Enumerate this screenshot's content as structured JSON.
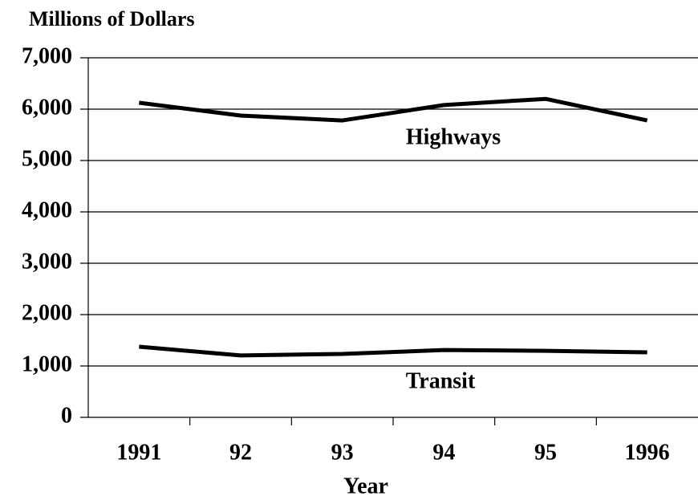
{
  "chart_data": {
    "type": "line",
    "y_label": "Millions of Dollars",
    "x_label": "Year",
    "categories": [
      "1991",
      "92",
      "93",
      "94",
      "95",
      "1996"
    ],
    "series": [
      {
        "name": "Highways",
        "color": "#000000",
        "values": [
          6125,
          5875,
          5780,
          6080,
          6200,
          5780
        ]
      },
      {
        "name": "Transit",
        "color": "#000000",
        "values": [
          1375,
          1205,
          1235,
          1310,
          1295,
          1265
        ]
      }
    ],
    "ylim": [
      0,
      7000
    ],
    "yticks": [
      0,
      {
        "value": 1000,
        "label": "1,000"
      },
      {
        "value": 2000,
        "label": "2,000"
      },
      {
        "value": 3000,
        "label": "3,000"
      },
      {
        "value": 4000,
        "label": "4,000"
      },
      {
        "value": 5000,
        "label": "5,000"
      },
      {
        "value": 6000,
        "label": "6,000"
      },
      {
        "value": 7000,
        "label": "7,000"
      }
    ],
    "grid": true
  }
}
